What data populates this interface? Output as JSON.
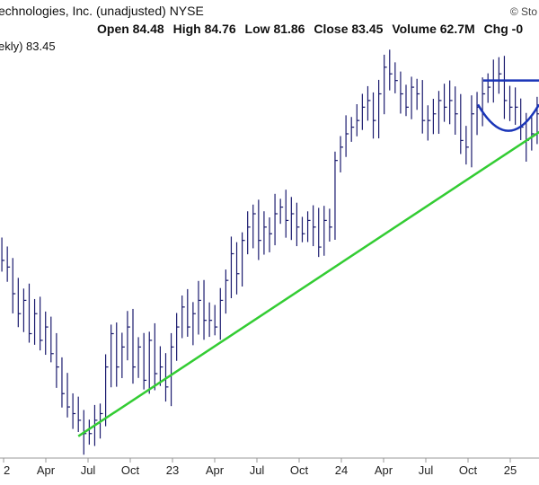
{
  "header": {
    "title": "echnologies, Inc. (unadjusted)",
    "exchange": "NYSE",
    "watermark": "© Sto",
    "ohlc": {
      "open_label": "Open",
      "open": "84.48",
      "high_label": "High",
      "high": "84.76",
      "low_label": "Low",
      "low": "81.86",
      "close_label": "Close",
      "close": "83.45",
      "volume_label": "Volume",
      "volume": "62.7M",
      "chg_label": "Chg",
      "chg": "-0"
    },
    "study_label": "ekly) 83.45"
  },
  "chart_data": {
    "type": "line",
    "title": "",
    "xlabel": "",
    "ylabel": "",
    "ylim": [
      68,
      98
    ],
    "x_ticks": [
      "2",
      "Apr",
      "Jul",
      "Oct",
      "23",
      "Apr",
      "Jul",
      "Oct",
      "24",
      "Apr",
      "Jul",
      "Oct",
      "25",
      ""
    ],
    "grid": false,
    "series": [
      {
        "values": [
          83.5,
          82.5,
          82,
          80,
          78.5,
          79.5,
          77,
          78.5,
          76.5,
          77.5,
          75.5,
          74.5,
          72.5,
          71.5,
          71,
          70.5,
          69.5,
          69.5,
          70.5,
          71,
          74.5,
          77,
          74.5,
          76,
          77.5,
          74.5,
          76,
          73.5,
          76.5,
          74,
          74.5,
          73,
          76,
          77.5,
          79,
          77.5,
          78.5,
          79.5,
          78,
          78,
          77.5,
          79.5,
          81,
          83,
          81.5,
          84,
          85,
          86,
          84,
          85,
          84.5,
          86,
          86.5,
          85.5,
          86,
          85,
          84.5,
          85.5,
          85,
          83.5,
          85.5,
          85,
          90,
          91,
          92,
          92.5,
          93,
          94,
          94.5,
          93,
          95,
          97,
          96.5,
          96,
          95,
          94,
          95.5,
          95,
          93,
          93,
          93.5,
          94.5,
          94,
          94.5,
          93.5,
          91.5,
          91,
          93.5,
          94,
          95,
          95.5,
          96,
          96.5,
          94.5,
          94,
          94,
          92.5,
          91.5,
          92,
          93.5,
          95
        ]
      }
    ],
    "trendline": {
      "from": [
        0.15,
        69.3
      ],
      "to": [
        1.0,
        92.3
      ]
    },
    "cup": {
      "rim": 96,
      "bottom": 91.6
    }
  }
}
